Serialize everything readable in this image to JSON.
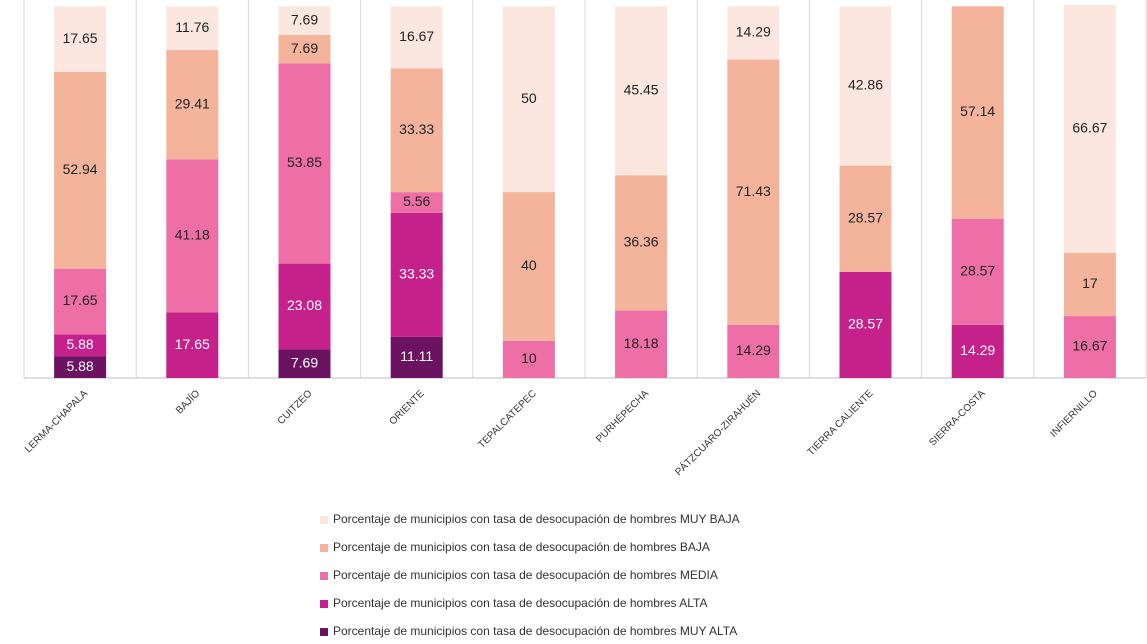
{
  "chart_data": {
    "type": "stacked_bar",
    "categories": [
      "LERMA-CHAPALA",
      "BAJÍO",
      "CUITZEO",
      "ORIENTE",
      "TEPALCATEPEC",
      "PURHÉPECHA",
      "PÁTZCUARO-ZIRAHUÉN",
      "TIERRA CALIENTE",
      "SIERRA-COSTA",
      "INFIERNILLO"
    ],
    "series": [
      {
        "name": "Porcentaje de municipios con tasa de desocupación de hombres MUY ALTA",
        "color": "#6b1360",
        "values": [
          5.88,
          null,
          7.69,
          11.11,
          null,
          null,
          null,
          null,
          null,
          null
        ]
      },
      {
        "name": "Porcentaje de municipios con tasa de desocupación de hombres ALTA",
        "color": "#c4228a",
        "values": [
          5.88,
          17.65,
          23.08,
          33.33,
          null,
          null,
          null,
          28.57,
          14.29,
          null
        ]
      },
      {
        "name": "Porcentaje de municipios con tasa de desocupación de hombres MEDIA",
        "color": "#ee6fa6",
        "values": [
          17.65,
          41.18,
          53.85,
          5.56,
          10,
          18.18,
          14.29,
          null,
          28.57,
          16.67
        ]
      },
      {
        "name": "Porcentaje de municipios con tasa de desocupación de hombres BAJA",
        "color": "#f4b49c",
        "values": [
          52.94,
          29.41,
          7.69,
          33.33,
          40,
          36.36,
          71.43,
          28.57,
          57.14,
          17
        ]
      },
      {
        "name": "Porcentaje de municipios con tasa de desocupación de hombres MUY BAJA",
        "color": "#fbe7df",
        "values": [
          17.65,
          11.76,
          7.69,
          16.67,
          50,
          45.45,
          14.29,
          42.86,
          null,
          66.67
        ]
      }
    ]
  }
}
